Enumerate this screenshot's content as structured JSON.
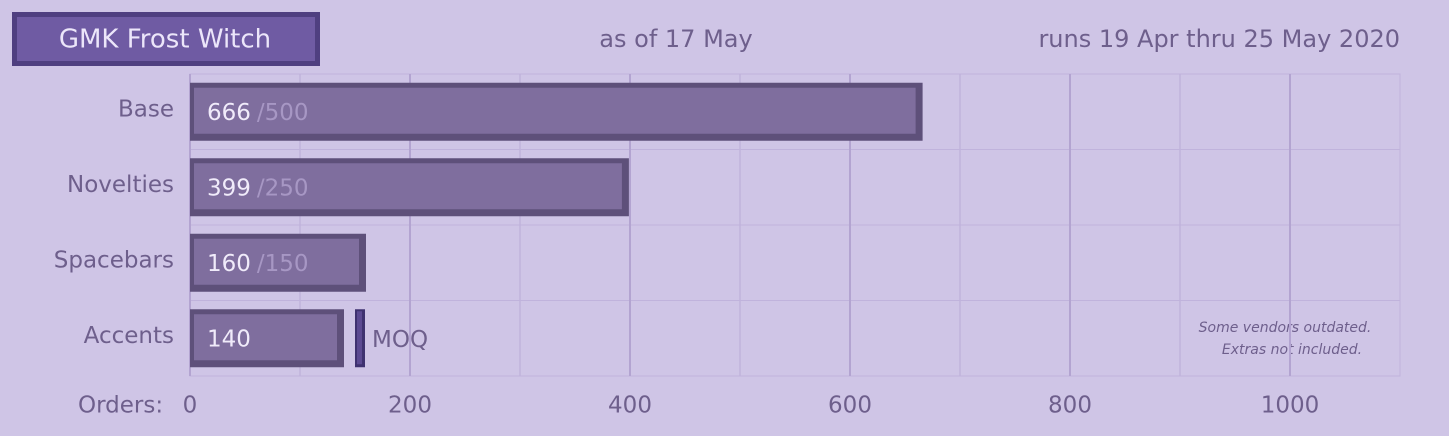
{
  "chart_data": {
    "type": "bar",
    "orientation": "horizontal",
    "title": "GMK Frost Witch",
    "subtitle": "as of 17 May",
    "run_dates": "runs 19 Apr thru 25 May 2020",
    "x_label": "Orders:",
    "categories": [
      "Base",
      "Novelties",
      "Spacebars",
      "Accents"
    ],
    "values": [
      666,
      399,
      160,
      140
    ],
    "target_labels": [
      "/500",
      "/250",
      "/150",
      null
    ],
    "color": "#7f6e9e",
    "moq": {
      "category": 3,
      "value": 150,
      "label": "MOQ",
      "color": "#5c4a92"
    },
    "xlim": [
      0,
      1100
    ],
    "xticks": [
      0,
      200,
      400,
      600,
      800,
      1000
    ],
    "minor_xticks": [
      100,
      300,
      500,
      700,
      900
    ],
    "grid": true,
    "annotation": [
      "Some vendors outdated.",
      "Extras not included."
    ]
  }
}
